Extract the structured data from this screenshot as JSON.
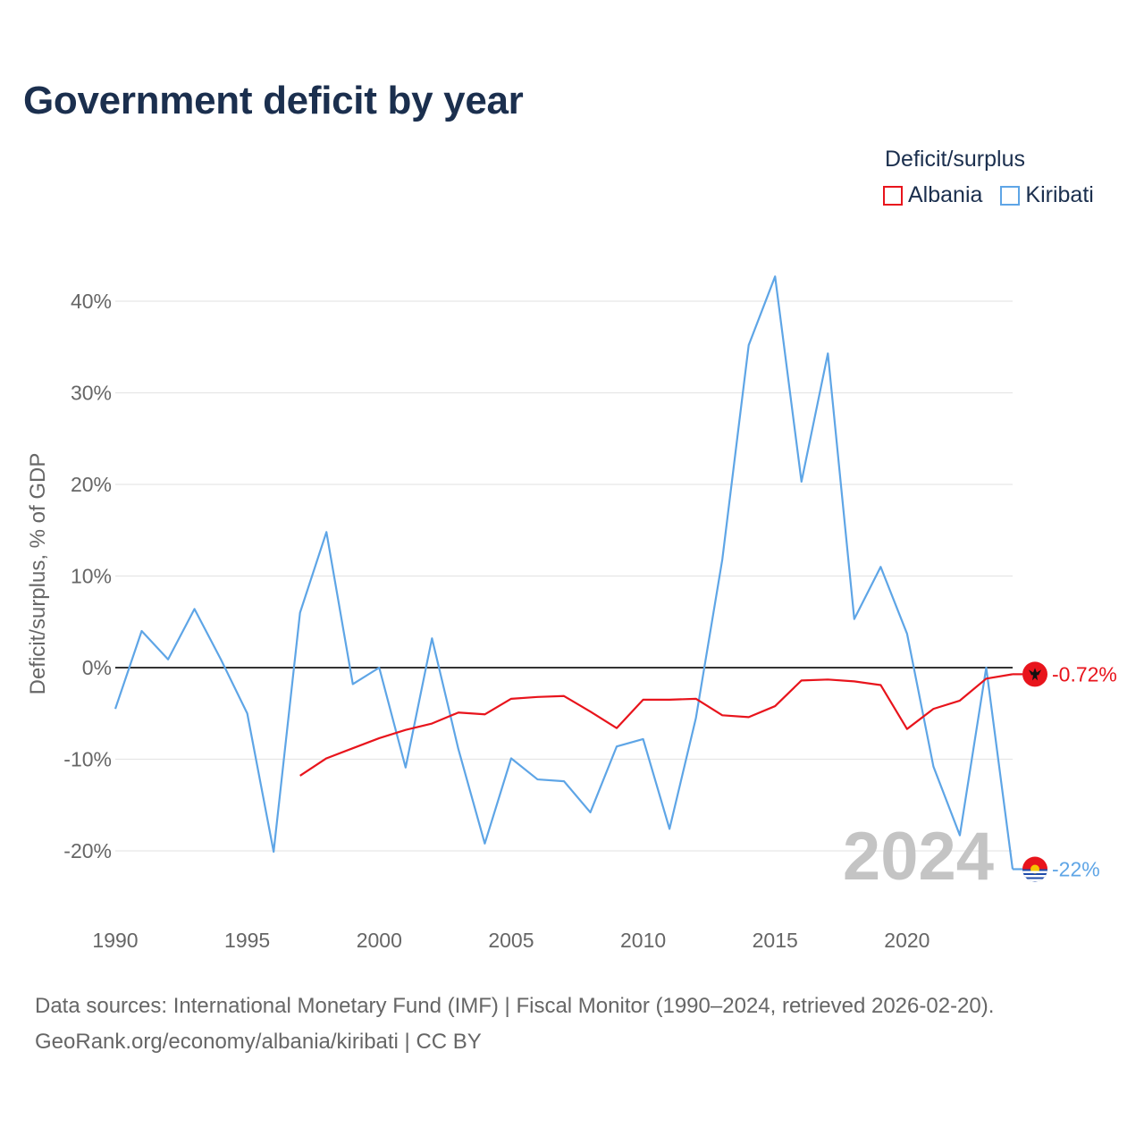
{
  "title": "Government deficit by year",
  "legend": {
    "title": "Deficit/surplus",
    "items": [
      {
        "label": "Albania",
        "color": "#e8141c"
      },
      {
        "label": "Kiribati",
        "color": "#5ea5e6"
      }
    ]
  },
  "source": {
    "line1": "Data sources: International Monetary Fund (IMF) | Fiscal Monitor (1990–2024, retrieved 2026-02-20).",
    "line2": "GeoRank.org/economy/albania/kiribati | CC BY"
  },
  "chart_data": {
    "type": "line",
    "title": "Government deficit by year",
    "ylabel": "Deficit/surplus, % of GDP",
    "xlabel": "",
    "xlim": [
      1990,
      2024
    ],
    "ylim": [
      -25,
      45
    ],
    "x_ticks": [
      1990,
      1995,
      2000,
      2005,
      2010,
      2015,
      2020
    ],
    "y_ticks": [
      -20,
      -10,
      0,
      10,
      20,
      30,
      40
    ],
    "y_tick_labels": [
      "-20%",
      "-10%",
      "0%",
      "10%",
      "20%",
      "30%",
      "40%"
    ],
    "year_watermark": "2024",
    "series": [
      {
        "name": "Albania",
        "color": "#e8141c",
        "end_label": "-0.72%",
        "flag": "albania-flag",
        "x": [
          1997,
          1998,
          1999,
          2000,
          2001,
          2002,
          2003,
          2004,
          2005,
          2006,
          2007,
          2008,
          2009,
          2010,
          2011,
          2012,
          2013,
          2014,
          2015,
          2016,
          2017,
          2018,
          2019,
          2020,
          2021,
          2022,
          2023,
          2024
        ],
        "values": [
          -11.8,
          -9.9,
          -8.8,
          -7.7,
          -6.8,
          -6.1,
          -4.9,
          -5.1,
          -3.4,
          -3.2,
          -3.1,
          -4.8,
          -6.6,
          -3.5,
          -3.5,
          -3.4,
          -5.2,
          -5.4,
          -4.2,
          -1.4,
          -1.3,
          -1.5,
          -1.9,
          -6.7,
          -4.5,
          -3.6,
          -1.2,
          -0.72
        ]
      },
      {
        "name": "Kiribati",
        "color": "#5ea5e6",
        "end_label": "-22%",
        "flag": "kiribati-flag",
        "x": [
          1990,
          1991,
          1992,
          1993,
          1994,
          1995,
          1996,
          1997,
          1998,
          1999,
          2000,
          2001,
          2002,
          2003,
          2004,
          2005,
          2006,
          2007,
          2008,
          2009,
          2010,
          2011,
          2012,
          2013,
          2014,
          2015,
          2016,
          2017,
          2018,
          2019,
          2020,
          2021,
          2022,
          2023,
          2024
        ],
        "values": [
          -4.5,
          4.0,
          0.9,
          6.4,
          0.9,
          -5.0,
          -20.1,
          6.0,
          14.8,
          -1.8,
          0.0,
          -10.9,
          3.2,
          -8.9,
          -19.2,
          -9.9,
          -12.2,
          -12.4,
          -15.8,
          -8.6,
          -7.8,
          -17.6,
          -5.5,
          11.8,
          35.2,
          42.7,
          20.3,
          34.3,
          5.3,
          11.0,
          3.7,
          -10.8,
          -18.3,
          0.0,
          -22.0
        ]
      }
    ]
  }
}
